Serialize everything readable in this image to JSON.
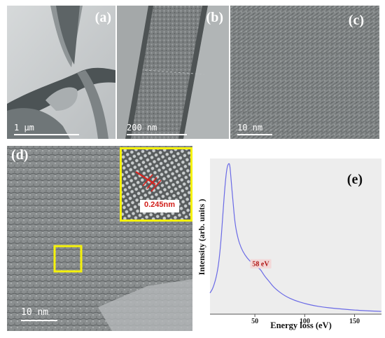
{
  "panels": {
    "a": {
      "label": "(a)",
      "scale": "1 μm"
    },
    "b": {
      "label": "(b)",
      "scale": "200 nm"
    },
    "c": {
      "label": "(c)",
      "scale": "10 nm"
    },
    "d": {
      "label": "(d)",
      "scale": "10 nm",
      "inset_value": "0.245nm"
    },
    "e": {
      "label": "(e)"
    }
  },
  "chart_data": {
    "type": "line",
    "xlabel": "Energy loss (eV)",
    "ylabel": "Intensity (arb. units )",
    "xlim": [
      5,
      177
    ],
    "xticks": [
      50,
      100,
      150
    ],
    "grid": false,
    "annotations": [
      {
        "text": "58 eV",
        "x": 58
      }
    ],
    "series": [
      {
        "color": "#6a6ae6",
        "x": [
          5,
          8,
          12,
          15,
          18,
          20,
          22,
          24,
          25,
          26,
          28,
          30,
          33,
          36,
          40,
          45,
          50,
          55,
          58,
          60,
          65,
          70,
          80,
          90,
          100,
          110,
          120,
          130,
          140,
          150,
          160,
          170,
          177
        ],
        "y": [
          0.14,
          0.17,
          0.26,
          0.4,
          0.66,
          0.85,
          0.97,
          1.0,
          0.98,
          0.9,
          0.75,
          0.6,
          0.5,
          0.44,
          0.39,
          0.35,
          0.32,
          0.3,
          0.27,
          0.25,
          0.21,
          0.17,
          0.12,
          0.09,
          0.07,
          0.055,
          0.045,
          0.038,
          0.032,
          0.027,
          0.023,
          0.02,
          0.018
        ]
      }
    ]
  }
}
